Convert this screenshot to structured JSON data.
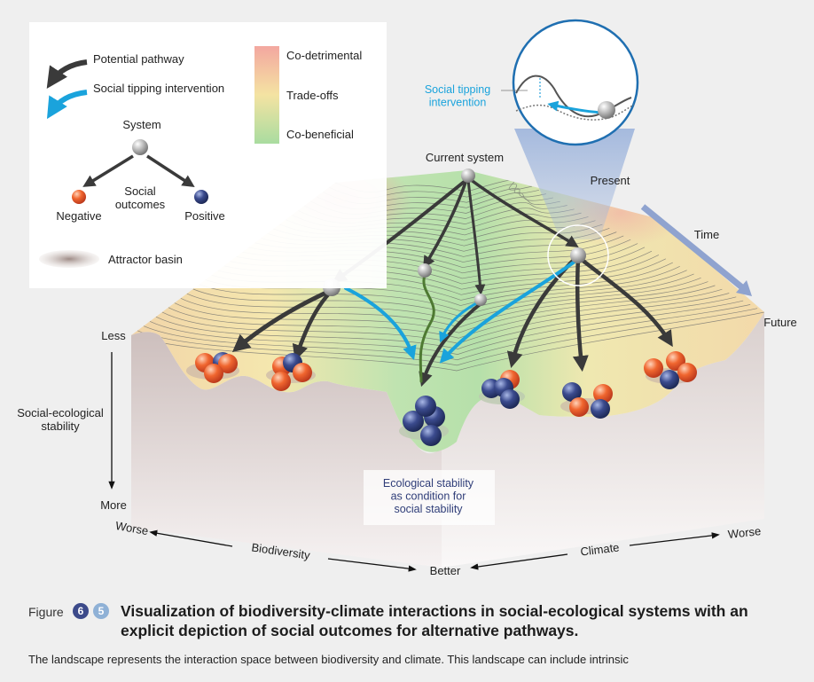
{
  "legend": {
    "potential_pathway": "Potential pathway",
    "social_tipping_intervention": "Social tipping intervention",
    "system": "System",
    "social_outcomes": "Social\noutcomes",
    "negative": "Negative",
    "positive": "Positive",
    "attractor_basin": "Attractor basin",
    "co_detrimental": "Co-detrimental",
    "trade_offs": "Trade-offs",
    "co_beneficial": "Co-beneficial"
  },
  "diagram": {
    "current_system": "Current system",
    "present": "Present",
    "time": "Time",
    "future": "Future",
    "inset_label": "Social tipping\nintervention",
    "ecological_note": "Ecological stability\nas condition for\nsocial stability"
  },
  "axes": {
    "less": "Less",
    "more": "More",
    "stability": "Social-ecological\nstability",
    "worse_left": "Worse",
    "biodiversity": "Biodiversity",
    "better": "Better",
    "climate": "Climate",
    "worse_right": "Worse"
  },
  "caption": {
    "figure_label": "Figure",
    "badge_1": "6",
    "badge_2": "5",
    "title": "Visualization of biodiversity-climate interactions in social-ecological systems with an explicit depiction of social outcomes for alternative pathways.",
    "description": "The landscape represents the interaction space between biodiversity and climate. This landscape can include intrinsic"
  },
  "colors": {
    "background": "#efefef",
    "negative": "#e8572a",
    "positive": "#2f3d78",
    "intervention": "#1aa3dc",
    "pathway": "#3a3a3a",
    "badge_1": "#3c4a8a",
    "badge_2": "#8fb1d6",
    "time_arrow": "#8fa3cf"
  }
}
